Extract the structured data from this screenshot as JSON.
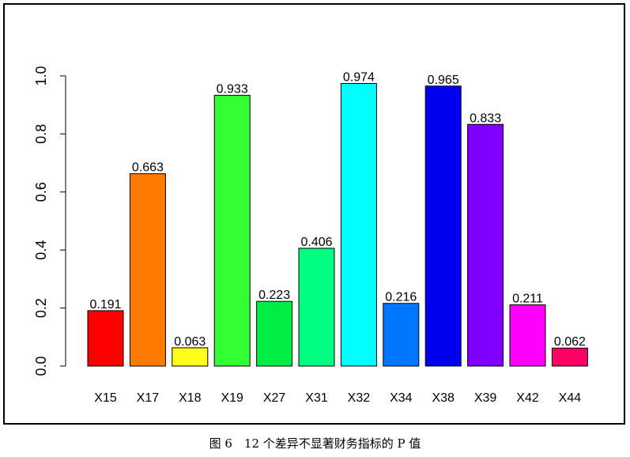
{
  "caption": "图 6　12 个差异不显著财务指标的 P 值",
  "chart_data": {
    "type": "bar",
    "categories": [
      "X15",
      "X17",
      "X18",
      "X19",
      "X27",
      "X31",
      "X32",
      "X34",
      "X38",
      "X39",
      "X42",
      "X44"
    ],
    "values": [
      0.191,
      0.663,
      0.063,
      0.933,
      0.223,
      0.406,
      0.974,
      0.216,
      0.965,
      0.833,
      0.211,
      0.062
    ],
    "data_labels": [
      "0.191",
      "0.663",
      "0.063",
      "0.933",
      "0.223",
      "0.406",
      "0.974",
      "0.216",
      "0.965",
      "0.833",
      "0.211",
      "0.062"
    ],
    "colors": [
      "#FF0000",
      "#FF7A00",
      "#FFFF1A",
      "#33FF33",
      "#00EE44",
      "#00FF80",
      "#00FFFF",
      "#0077FF",
      "#0000EE",
      "#8000FF",
      "#FF00FF",
      "#FF0066"
    ],
    "yticks": [
      "0.0",
      "0.2",
      "0.4",
      "0.6",
      "0.8",
      "1.0"
    ],
    "ylim": [
      0,
      1.0
    ],
    "grid": false,
    "legend": "none"
  }
}
